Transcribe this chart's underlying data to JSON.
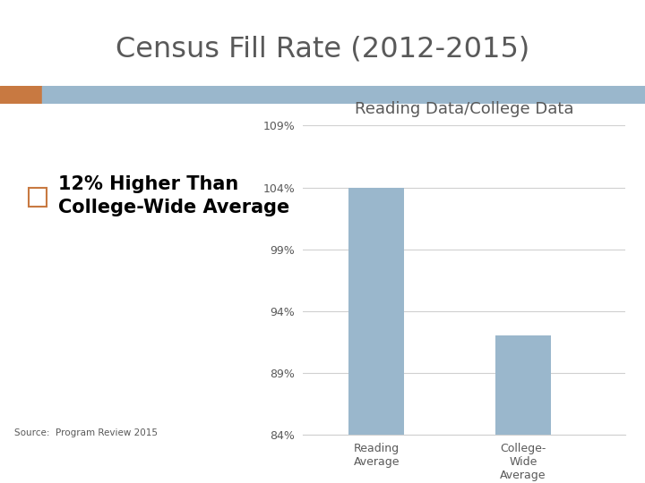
{
  "main_title": "Census Fill Rate (2012-2015)",
  "chart_title": "Reading Data/College Data",
  "bullet_text_line1": "12% Higher Than",
  "bullet_text_line2": "College-Wide Average",
  "source_text": "Source:  Program Review 2015",
  "categories": [
    "Reading\nAverage",
    "College-\nWide\nAverage"
  ],
  "values": [
    104,
    92
  ],
  "bar_color": "#9ab7cc",
  "ylim": [
    84,
    109
  ],
  "yticks": [
    84,
    89,
    94,
    99,
    104,
    109
  ],
  "ytick_labels": [
    "84%",
    "89%",
    "94%",
    "99%",
    "104%",
    "109%"
  ],
  "header_bar_color1": "#c87941",
  "header_bar_color2": "#9ab7cc",
  "bullet_color": "#c87941",
  "title_color": "#595959",
  "chart_title_color": "#595959",
  "axis_label_color": "#595959",
  "tick_label_color": "#595959",
  "background_color": "#ffffff",
  "grid_color": "#d0d0d0"
}
